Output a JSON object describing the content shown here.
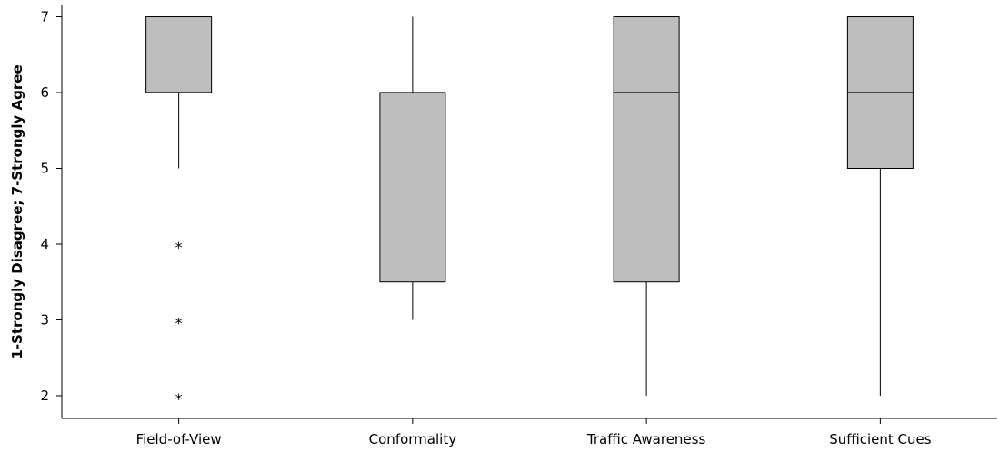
{
  "chart_data": {
    "type": "boxplot",
    "ylabel": "1-Strongly Disagree; 7-Strongly Agree",
    "ylim": [
      1.7,
      7.15
    ],
    "yticks": [
      2,
      3,
      4,
      5,
      6,
      7
    ],
    "categories": [
      "Field-of-View",
      "Conformality",
      "Traffic Awareness",
      "Sufficient Cues"
    ],
    "boxes": [
      {
        "category": "Field-of-View",
        "whisker_low": 5,
        "q1": 6,
        "median": 6,
        "q3": 7,
        "whisker_high": 7,
        "outliers": [
          4,
          3,
          2
        ]
      },
      {
        "category": "Conformality",
        "whisker_low": 3,
        "q1": 3.5,
        "median": 6,
        "q3": 6,
        "whisker_high": 7,
        "outliers": []
      },
      {
        "category": "Traffic Awareness",
        "whisker_low": 2,
        "q1": 3.5,
        "median": 6,
        "q3": 7,
        "whisker_high": 7,
        "outliers": []
      },
      {
        "category": "Sufficient Cues",
        "whisker_low": 2,
        "q1": 5,
        "median": 6,
        "q3": 7,
        "whisker_high": 7,
        "outliers": []
      }
    ],
    "outlier_marker": "*",
    "box_fill": "#bebebe",
    "grid": false
  }
}
